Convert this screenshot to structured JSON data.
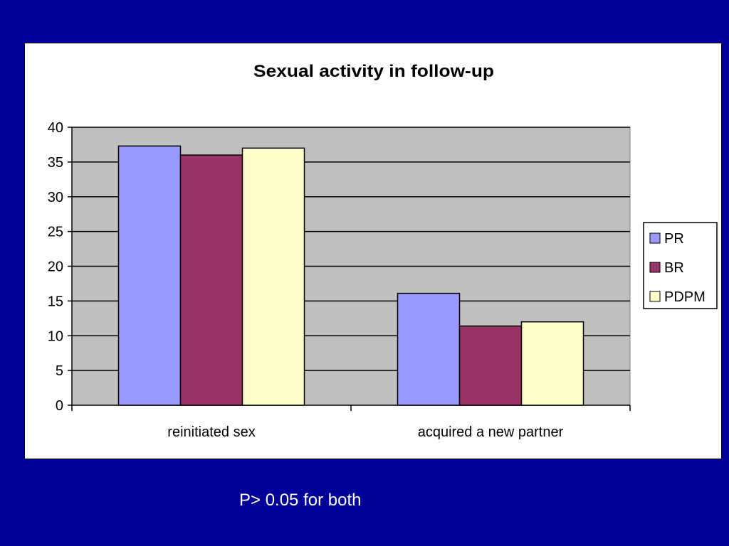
{
  "chart_data": {
    "type": "bar",
    "title": "Sexual activity in follow-up",
    "xlabel": "",
    "ylabel": "",
    "categories": [
      "reinitiated sex",
      "acquired a new partner"
    ],
    "series": [
      {
        "name": "PR",
        "values": [
          37.3,
          16.1
        ],
        "color": "#9999ff"
      },
      {
        "name": "BR",
        "values": [
          36.0,
          11.4
        ],
        "color": "#993366"
      },
      {
        "name": "PDPM",
        "values": [
          37.0,
          12.0
        ],
        "color": "#ffffcc"
      }
    ],
    "ylim": [
      0,
      40
    ],
    "yticks": [
      0,
      5,
      10,
      15,
      20,
      25,
      30,
      35,
      40
    ],
    "grid": true,
    "plot_background": "#c0c0c0",
    "legend_position": "right"
  },
  "footnote": "P> 0.05 for both",
  "colors": {
    "page_background": "#000099",
    "panel_background": "#ffffff",
    "footnote_text": "#ffffff"
  }
}
